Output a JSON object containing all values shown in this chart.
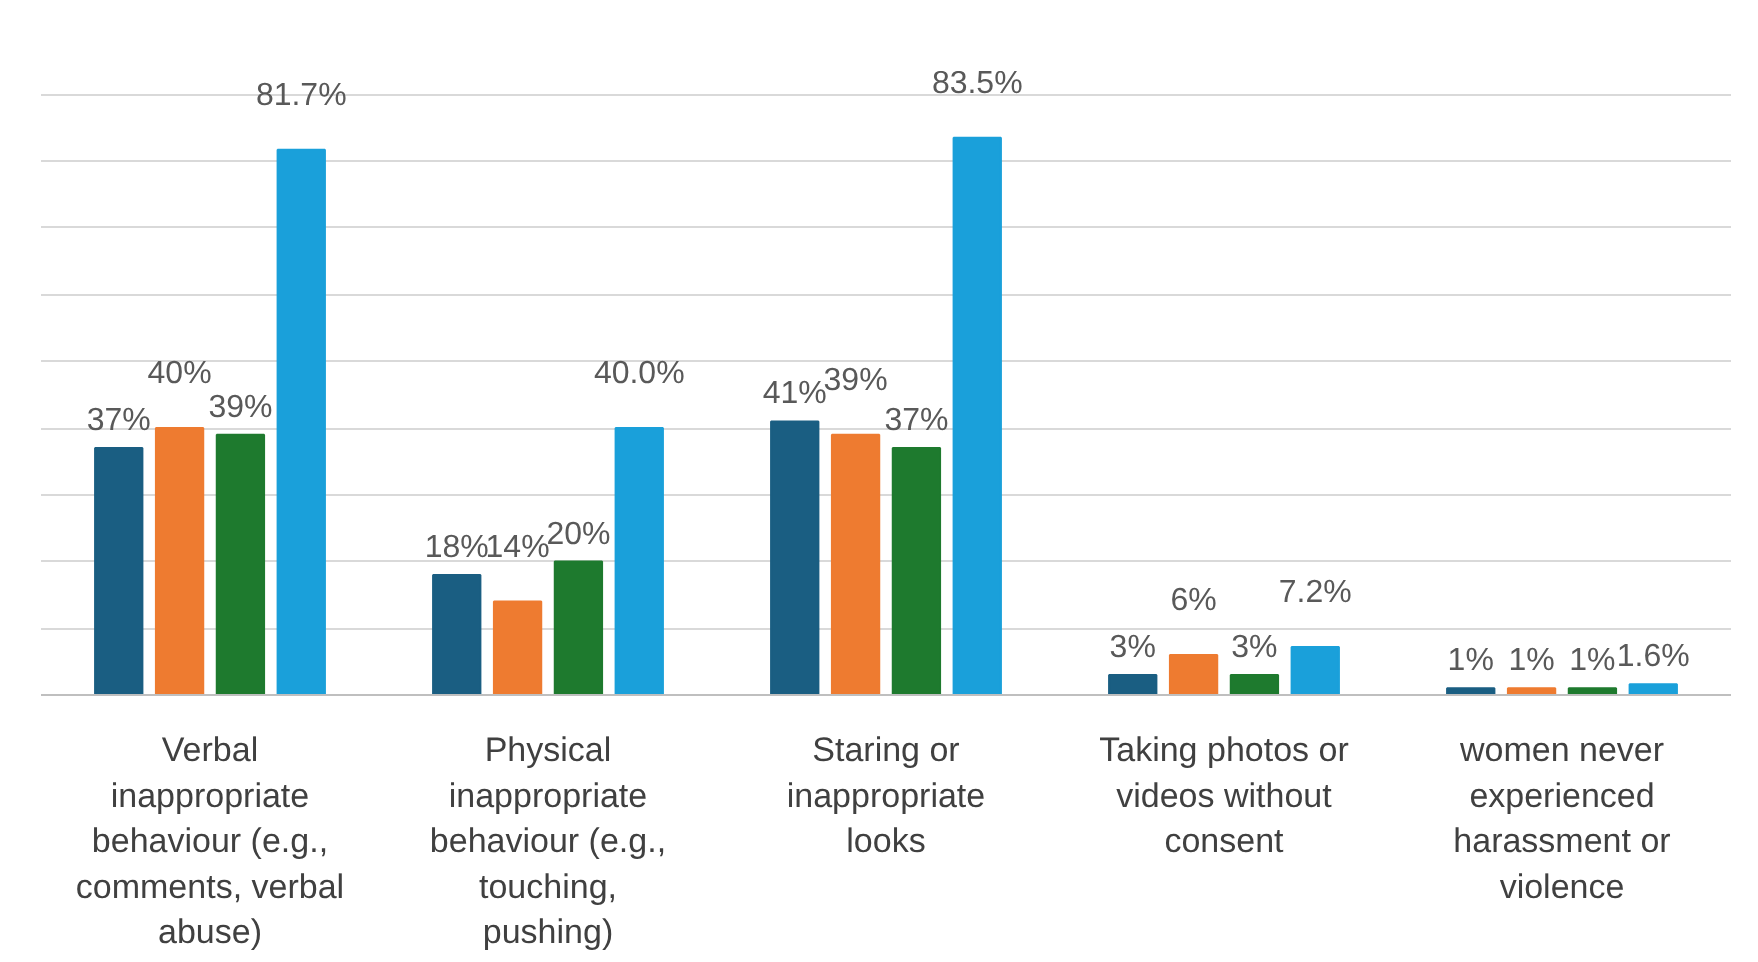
{
  "chart_data": {
    "type": "bar",
    "categories": [
      "Verbal inappropriate behaviour (e.g., comments, verbal abuse)",
      "Physical inappropriate behaviour (e.g., touching, pushing)",
      "Staring or inappropriate looks",
      "Taking photos or videos without consent",
      "women never experienced harassment or violence"
    ],
    "series": [
      {
        "color": "#1a5e82",
        "values": [
          37,
          18,
          41,
          3,
          1
        ],
        "value_labels": [
          "37%",
          "18%",
          "41%",
          "3%",
          "1%"
        ]
      },
      {
        "color": "#ee7b30",
        "values": [
          40,
          14,
          39,
          6,
          1
        ],
        "value_labels": [
          "40%",
          "14%",
          "39%",
          "6%",
          "1%"
        ]
      },
      {
        "color": "#1e7a2e",
        "values": [
          39,
          20,
          37,
          3,
          1
        ],
        "value_labels": [
          "39%",
          "20%",
          "37%",
          "3%",
          "1%"
        ]
      },
      {
        "color": "#1aa0da",
        "values": [
          81.7,
          40.0,
          83.5,
          7.2,
          1.6
        ],
        "value_labels": [
          "81.7%",
          "40.0%",
          "83.5%",
          "7.2%",
          "1.6%"
        ]
      }
    ],
    "yticks": [
      {
        "value": 0,
        "label": null
      },
      {
        "value": 10,
        "label": null
      },
      {
        "value": 20,
        "label": null
      },
      {
        "value": 30,
        "label": null
      },
      {
        "value": 40,
        "label": null
      },
      {
        "value": 50,
        "label": null
      },
      {
        "value": 60,
        "label": null
      },
      {
        "value": 70,
        "label": null
      },
      {
        "value": 80,
        "label": null
      },
      {
        "value": 90,
        "label": null
      }
    ],
    "grid": "y",
    "tick_labels": "x"
  }
}
